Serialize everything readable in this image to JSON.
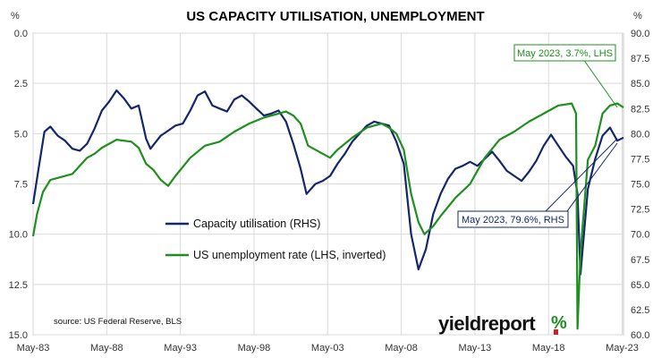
{
  "chart_data": {
    "type": "line",
    "title": "US CAPACITY UTILISATION, UNEMPLOYMENT",
    "left_axis": {
      "unit": "%",
      "ylim": [
        15.0,
        0.0
      ],
      "inverted": true,
      "tick_values": [
        0,
        2.5,
        5,
        7.5,
        10,
        12.5,
        15
      ],
      "tick_labels": [
        "0.0",
        "2.5",
        "5.0",
        "7.5",
        "10.0",
        "12.5",
        "15.0"
      ]
    },
    "right_axis": {
      "unit": "%",
      "ylim": [
        60.0,
        90.0
      ],
      "tick_values": [
        90,
        87.5,
        85,
        82.5,
        80,
        77.5,
        75,
        72.5,
        70,
        67.5,
        65,
        62.5,
        60
      ],
      "tick_labels": [
        "90.0",
        "87.5",
        "85.0",
        "82.5",
        "80.0",
        "77.5",
        "75.0",
        "72.5",
        "70.0",
        "67.5",
        "65.0",
        "62.5",
        "60.0"
      ]
    },
    "x_axis": {
      "range": [
        1983.33,
        2023.42
      ],
      "tick_values": [
        1983.33,
        1988.33,
        1993.33,
        1998.33,
        2003.33,
        2008.33,
        2013.33,
        2018.33,
        2023.33
      ],
      "tick_labels": [
        "May-83",
        "May-88",
        "May-93",
        "May-98",
        "May-03",
        "May-08",
        "May-13",
        "May-18",
        "May-23"
      ]
    },
    "grid": true,
    "legend_position": "center-left",
    "series": [
      {
        "name": "Capacity utilisation (RHS)",
        "axis": "right",
        "color": "#14276b",
        "x": [
          1983.33,
          1983.7,
          1984.1,
          1984.5,
          1985.0,
          1985.5,
          1986.0,
          1986.5,
          1987.0,
          1987.5,
          1988.0,
          1988.5,
          1989.0,
          1989.5,
          1990.0,
          1990.5,
          1991.0,
          1991.3,
          1992.0,
          1992.5,
          1993.0,
          1993.5,
          1994.0,
          1994.5,
          1995.0,
          1995.5,
          1996.0,
          1996.5,
          1997.0,
          1997.5,
          1998.0,
          1998.5,
          1999.0,
          1999.5,
          2000.0,
          2000.5,
          2001.0,
          2001.5,
          2001.9,
          2002.5,
          2003.0,
          2003.5,
          2004.0,
          2004.5,
          2005.0,
          2005.5,
          2006.0,
          2006.5,
          2007.0,
          2007.5,
          2008.0,
          2008.5,
          2009.0,
          2009.5,
          2010.0,
          2010.5,
          2011.0,
          2011.5,
          2012.0,
          2012.5,
          2013.0,
          2013.5,
          2014.0,
          2014.5,
          2015.0,
          2015.5,
          2016.0,
          2016.5,
          2017.0,
          2017.5,
          2018.0,
          2018.5,
          2019.0,
          2019.5,
          2020.0,
          2020.3,
          2020.5,
          2021.0,
          2021.5,
          2022.0,
          2022.5,
          2023.0,
          2023.42
        ],
        "y": [
          73.0,
          76.5,
          80.2,
          80.7,
          79.8,
          79.3,
          78.5,
          78.3,
          79.0,
          80.5,
          82.3,
          83.2,
          84.3,
          83.5,
          82.5,
          82.8,
          79.5,
          78.5,
          79.8,
          80.3,
          80.8,
          81.0,
          82.3,
          83.8,
          84.2,
          82.8,
          82.5,
          82.2,
          83.4,
          83.8,
          83.2,
          82.5,
          81.8,
          82.0,
          82.3,
          81.2,
          79.0,
          76.5,
          74.0,
          75.0,
          75.3,
          75.8,
          77.0,
          78.0,
          79.2,
          80.0,
          80.8,
          81.2,
          81.0,
          80.8,
          79.2,
          77.0,
          70.0,
          66.5,
          68.5,
          72.0,
          74.0,
          75.5,
          76.5,
          76.8,
          77.2,
          76.8,
          77.5,
          78.2,
          77.3,
          76.3,
          75.8,
          75.3,
          76.2,
          77.3,
          78.8,
          79.9,
          78.8,
          77.7,
          76.8,
          74.0,
          66.0,
          74.5,
          77.5,
          79.8,
          80.6,
          79.3,
          79.6
        ]
      },
      {
        "name": "US unemployment rate (LHS, inverted)",
        "axis": "left",
        "color": "#1f8f1f",
        "x": [
          1983.33,
          1983.6,
          1984.0,
          1984.5,
          1985.0,
          1986.0,
          1987.0,
          1987.5,
          1988.0,
          1989.0,
          1990.0,
          1990.5,
          1991.0,
          1991.5,
          1992.0,
          1992.5,
          1993.0,
          1994.0,
          1995.0,
          1996.0,
          1997.0,
          1998.0,
          1999.0,
          2000.0,
          2000.5,
          2001.0,
          2001.5,
          2002.0,
          2002.5,
          2003.0,
          2003.5,
          2004.0,
          2005.0,
          2006.0,
          2007.0,
          2007.5,
          2008.0,
          2008.5,
          2009.0,
          2009.5,
          2009.9,
          2010.5,
          2011.0,
          2012.0,
          2013.0,
          2014.0,
          2015.0,
          2016.0,
          2017.0,
          2018.0,
          2019.0,
          2019.9,
          2020.2,
          2020.3,
          2020.5,
          2021.0,
          2021.5,
          2022.0,
          2022.5,
          2023.0,
          2023.42
        ],
        "y": [
          10.1,
          9.0,
          7.9,
          7.3,
          7.2,
          7.0,
          6.2,
          6.0,
          5.7,
          5.3,
          5.4,
          5.7,
          6.5,
          6.8,
          7.3,
          7.6,
          7.1,
          6.2,
          5.6,
          5.4,
          4.9,
          4.5,
          4.2,
          4.0,
          3.9,
          4.1,
          4.5,
          5.6,
          5.8,
          6.0,
          6.2,
          5.8,
          5.2,
          4.7,
          4.5,
          4.7,
          5.0,
          5.8,
          8.0,
          9.4,
          10.0,
          9.6,
          9.1,
          8.2,
          7.5,
          6.2,
          5.3,
          4.9,
          4.4,
          4.0,
          3.6,
          3.5,
          4.0,
          14.7,
          11.0,
          6.3,
          5.6,
          4.0,
          3.6,
          3.5,
          3.7
        ]
      }
    ],
    "annotations": [
      {
        "text": "May 2023, 3.7%, LHS",
        "color": "#1f8f1f"
      },
      {
        "text": "May 2023, 79.6%, RHS",
        "color": "#14276b"
      }
    ],
    "source": "source: US Federal Reserve, BLS",
    "logo": "yieldreport"
  }
}
